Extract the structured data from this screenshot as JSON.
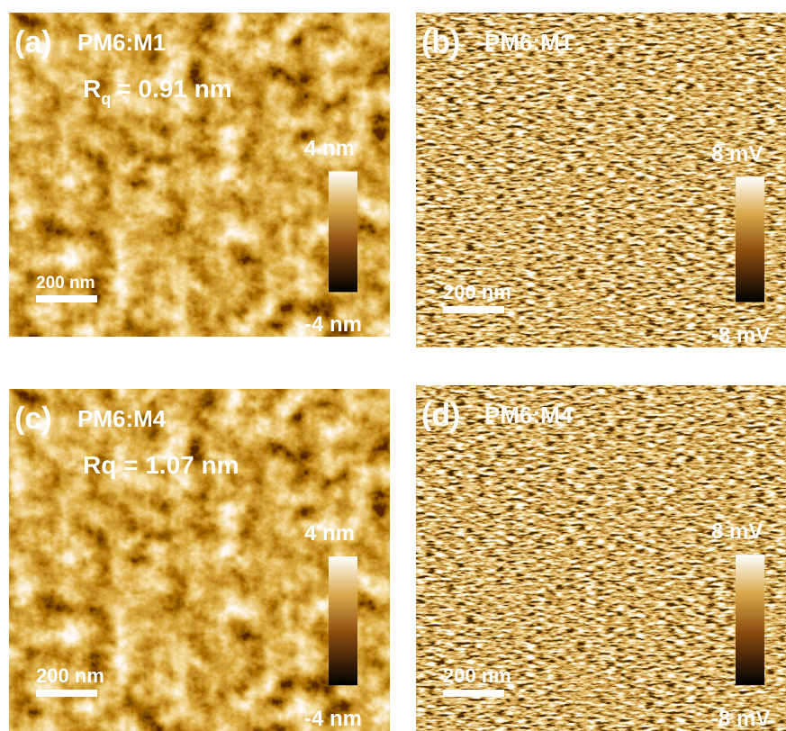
{
  "panels": [
    {
      "label": "(a)",
      "sample": "PM6:M1",
      "roughness": {
        "symbol": "R",
        "subscript": "q",
        "value": "= 0.91 nm"
      },
      "scale_max": "4 nm",
      "scale_min": "-4 nm",
      "scale_bar": "200 nm"
    },
    {
      "label": "(b)",
      "sample": "PM6:M1",
      "scale_max": "8 mV",
      "scale_min": "-8 mV",
      "scale_bar": "200 nm"
    },
    {
      "label": "(c)",
      "sample": "PM6:M4",
      "roughness": {
        "text": "Rq = 1.07 nm"
      },
      "scale_max": "4 nm",
      "scale_min": "-4 nm",
      "scale_bar": "200 nm"
    },
    {
      "label": "(d)",
      "sample": "PM6:M4",
      "scale_max": "8 mV",
      "scale_min": "-8 mV",
      "scale_bar": "200 nm"
    }
  ]
}
